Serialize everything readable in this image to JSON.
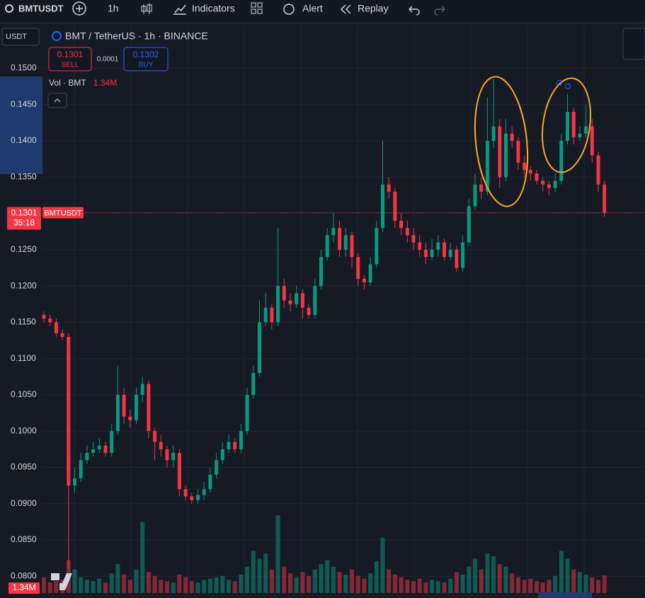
{
  "ui": {
    "symbol": "BMTUSDT",
    "interval": "1h",
    "indicators": "Indicators",
    "alert": "Alert",
    "replay": "Replay",
    "currency": "USDT",
    "pair": "BMT / TetherUS · 1h · BINANCE",
    "sell_price": "0.1301",
    "sell": "SELL",
    "spread": "0.0001",
    "buy_price": "0.1302",
    "buy": "BUY",
    "vol_label": "Vol · BMT",
    "vol_value": "1.34M",
    "last_price": "0.1301",
    "countdown": "35:18",
    "price_tag": "BMTUSDT",
    "vol_axis": "1.34M"
  },
  "chart_data": {
    "type": "candlestick",
    "up_color": "#089981",
    "down_color": "#f23645",
    "grid": true,
    "ylim": [
      0.077,
      0.156
    ],
    "yticks": [
      {
        "value": 0.08,
        "label": "0.0800"
      },
      {
        "value": 0.085,
        "label": "0.0850"
      },
      {
        "value": 0.09,
        "label": "0.0900"
      },
      {
        "value": 0.095,
        "label": "0.0950"
      },
      {
        "value": 0.1,
        "label": "0.1000"
      },
      {
        "value": 0.105,
        "label": "0.1050"
      },
      {
        "value": 0.11,
        "label": "0.1100"
      },
      {
        "value": 0.115,
        "label": "0.1150"
      },
      {
        "value": 0.12,
        "label": "0.1200"
      },
      {
        "value": 0.125,
        "label": "0.1250"
      },
      {
        "value": 0.13,
        "label": "0.1300"
      },
      {
        "value": 0.135,
        "label": "0.1350"
      },
      {
        "value": 0.14,
        "label": "0.1400"
      },
      {
        "value": 0.145,
        "label": "0.1450"
      },
      {
        "value": 0.15,
        "label": "0.1500"
      }
    ],
    "open": [
      0.116,
      0.1155,
      0.115,
      0.1135,
      0.113,
      0.0925,
      0.0935,
      0.096,
      0.097,
      0.0975,
      0.098,
      0.097,
      0.1,
      0.105,
      0.102,
      0.1015,
      0.105,
      0.1065,
      0.1,
      0.0985,
      0.0975,
      0.096,
      0.097,
      0.092,
      0.091,
      0.0905,
      0.0912,
      0.092,
      0.094,
      0.096,
      0.0975,
      0.0985,
      0.0975,
      0.1,
      0.105,
      0.108,
      0.115,
      0.117,
      0.115,
      0.12,
      0.118,
      0.1175,
      0.119,
      0.117,
      0.116,
      0.12,
      0.124,
      0.127,
      0.128,
      0.125,
      0.127,
      0.124,
      0.121,
      0.1205,
      0.123,
      0.128,
      0.134,
      0.133,
      0.129,
      0.128,
      0.127,
      0.126,
      0.125,
      0.124,
      0.125,
      0.126,
      0.124,
      0.125,
      0.1225,
      0.126,
      0.131,
      0.134,
      0.133,
      0.14,
      0.142,
      0.135,
      0.141,
      0.14,
      0.137,
      0.136,
      0.1355,
      0.1345,
      0.134,
      0.1335,
      0.1345,
      0.14,
      0.144,
      0.1405,
      0.141,
      0.142,
      0.138,
      0.134
    ],
    "high": [
      0.1165,
      0.116,
      0.1155,
      0.114,
      0.1135,
      0.095,
      0.097,
      0.098,
      0.0985,
      0.099,
      0.0985,
      0.101,
      0.109,
      0.106,
      0.103,
      0.106,
      0.1075,
      0.107,
      0.1005,
      0.0995,
      0.098,
      0.098,
      0.0975,
      0.0925,
      0.0915,
      0.092,
      0.093,
      0.095,
      0.097,
      0.0985,
      0.0995,
      0.099,
      0.101,
      0.106,
      0.109,
      0.118,
      0.119,
      0.1175,
      0.128,
      0.121,
      0.119,
      0.12,
      0.1195,
      0.1175,
      0.121,
      0.125,
      0.128,
      0.13,
      0.129,
      0.128,
      0.1275,
      0.1245,
      0.1215,
      0.124,
      0.129,
      0.14,
      0.135,
      0.1335,
      0.13,
      0.129,
      0.128,
      0.127,
      0.126,
      0.1265,
      0.127,
      0.1265,
      0.126,
      0.1255,
      0.127,
      0.132,
      0.1355,
      0.135,
      0.146,
      0.1485,
      0.143,
      0.143,
      0.142,
      0.1405,
      0.138,
      0.1365,
      0.136,
      0.135,
      0.1345,
      0.1355,
      0.141,
      0.1465,
      0.1445,
      0.142,
      0.145,
      0.143,
      0.1385,
      0.1345
    ],
    "low": [
      0.115,
      0.1145,
      0.113,
      0.1125,
      0.081,
      0.0915,
      0.093,
      0.0955,
      0.0965,
      0.097,
      0.0965,
      0.0965,
      0.0995,
      0.101,
      0.1005,
      0.101,
      0.104,
      0.099,
      0.096,
      0.0965,
      0.095,
      0.095,
      0.091,
      0.0905,
      0.09,
      0.09,
      0.0905,
      0.0915,
      0.0935,
      0.0955,
      0.097,
      0.097,
      0.097,
      0.0995,
      0.1045,
      0.1075,
      0.1145,
      0.114,
      0.1145,
      0.117,
      0.1165,
      0.117,
      0.1155,
      0.1155,
      0.1155,
      0.1195,
      0.1235,
      0.126,
      0.124,
      0.124,
      0.1225,
      0.12,
      0.1195,
      0.12,
      0.1225,
      0.1275,
      0.132,
      0.128,
      0.127,
      0.126,
      0.125,
      0.124,
      0.123,
      0.1235,
      0.124,
      0.1235,
      0.1235,
      0.122,
      0.122,
      0.1255,
      0.1305,
      0.132,
      0.1325,
      0.139,
      0.1335,
      0.1345,
      0.139,
      0.136,
      0.135,
      0.1345,
      0.134,
      0.133,
      0.1325,
      0.133,
      0.134,
      0.1395,
      0.1395,
      0.14,
      0.1405,
      0.137,
      0.133,
      0.1295
    ],
    "close": [
      0.1155,
      0.115,
      0.1135,
      0.113,
      0.0925,
      0.0935,
      0.096,
      0.097,
      0.0975,
      0.098,
      0.097,
      0.1,
      0.105,
      0.102,
      0.1015,
      0.105,
      0.1065,
      0.1,
      0.0985,
      0.0975,
      0.096,
      0.097,
      0.092,
      0.091,
      0.0905,
      0.0912,
      0.092,
      0.094,
      0.096,
      0.0975,
      0.0985,
      0.0975,
      0.1,
      0.105,
      0.108,
      0.115,
      0.117,
      0.115,
      0.12,
      0.118,
      0.1175,
      0.119,
      0.117,
      0.116,
      0.12,
      0.124,
      0.127,
      0.128,
      0.125,
      0.127,
      0.124,
      0.121,
      0.1205,
      0.123,
      0.128,
      0.134,
      0.133,
      0.129,
      0.128,
      0.127,
      0.126,
      0.125,
      0.124,
      0.125,
      0.126,
      0.124,
      0.125,
      0.1225,
      0.126,
      0.131,
      0.134,
      0.133,
      0.14,
      0.142,
      0.135,
      0.141,
      0.14,
      0.137,
      0.136,
      0.1355,
      0.1345,
      0.134,
      0.1335,
      0.1345,
      0.14,
      0.144,
      0.1405,
      0.141,
      0.142,
      0.138,
      0.134,
      0.1301
    ],
    "volume": [
      1.2,
      0.8,
      0.9,
      1.0,
      2.5,
      1.8,
      1.2,
      1.0,
      0.9,
      1.1,
      0.8,
      1.5,
      2.2,
      1.4,
      1.0,
      1.8,
      5.4,
      1.6,
      1.3,
      1.0,
      0.9,
      0.8,
      1.4,
      1.2,
      0.9,
      0.8,
      1.0,
      1.1,
      1.2,
      1.3,
      1.0,
      0.9,
      1.4,
      2.0,
      3.2,
      2.6,
      3.0,
      1.8,
      5.9,
      2.0,
      1.5,
      1.2,
      1.6,
      1.3,
      1.8,
      2.2,
      2.5,
      2.0,
      1.6,
      1.4,
      1.8,
      1.3,
      1.1,
      1.5,
      2.4,
      4.2,
      1.8,
      1.4,
      1.2,
      1.0,
      0.9,
      1.1,
      0.8,
      1.0,
      0.9,
      0.8,
      1.1,
      1.6,
      1.4,
      2.0,
      2.6,
      1.8,
      3.0,
      2.8,
      2.2,
      2.0,
      1.5,
      1.2,
      1.0,
      1.1,
      0.9,
      0.8,
      1.0,
      1.3,
      3.2,
      2.6,
      1.8,
      1.6,
      1.4,
      1.2,
      1.0,
      1.34
    ]
  }
}
